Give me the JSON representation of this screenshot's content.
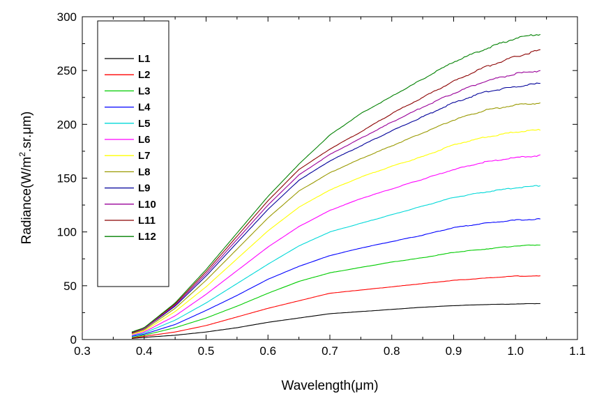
{
  "chart_data": {
    "type": "line",
    "xlabel": "Wavelength(μm)",
    "ylabel_parts": [
      "Radiance(W/m",
      "2",
      ".sr.μm)"
    ],
    "xlim": [
      0.3,
      1.1
    ],
    "ylim": [
      0,
      300
    ],
    "x_ticks": [
      "0.3",
      "0.4",
      "0.5",
      "0.6",
      "0.7",
      "0.8",
      "0.9",
      "1.0",
      "1.1"
    ],
    "y_ticks": [
      "0",
      "50",
      "100",
      "150",
      "200",
      "250",
      "300"
    ],
    "grid": false,
    "legend_position": "top-left",
    "x": [
      0.38,
      0.4,
      0.45,
      0.5,
      0.55,
      0.6,
      0.65,
      0.7,
      0.75,
      0.8,
      0.85,
      0.9,
      0.95,
      1.0,
      1.04
    ],
    "series": [
      {
        "name": "L1",
        "color": "#000000",
        "values": [
          1,
          2,
          4,
          7,
          11,
          16,
          20,
          24,
          26,
          28,
          30,
          31.5,
          32.5,
          33,
          33.5
        ]
      },
      {
        "name": "L2",
        "color": "#ff0000",
        "values": [
          1.5,
          3,
          7,
          13,
          21,
          29,
          36,
          43,
          46,
          49,
          52,
          55,
          57,
          59,
          59
        ]
      },
      {
        "name": "L3",
        "color": "#00cc00",
        "values": [
          2,
          4,
          11,
          20,
          31,
          43,
          54,
          62,
          67,
          72,
          76,
          81,
          84,
          87,
          88
        ]
      },
      {
        "name": "L4",
        "color": "#0000ff",
        "values": [
          3,
          5,
          14,
          27,
          41,
          56,
          68,
          78,
          85,
          91,
          97,
          104,
          108,
          111,
          112
        ]
      },
      {
        "name": "L5",
        "color": "#00d8d8",
        "values": [
          3.5,
          6,
          18,
          34,
          52,
          70,
          87,
          100,
          108,
          116,
          124,
          132,
          137,
          141,
          143
        ]
      },
      {
        "name": "L6",
        "color": "#ff00ff",
        "values": [
          4,
          7,
          22,
          42,
          64,
          86,
          105,
          120,
          131,
          140,
          149,
          158,
          165,
          169,
          171
        ]
      },
      {
        "name": "L7",
        "color": "#ffff00",
        "values": [
          5,
          8,
          26,
          49,
          75,
          101,
          123,
          139,
          151,
          161,
          170,
          181,
          188,
          193,
          195
        ]
      },
      {
        "name": "L8",
        "color": "#999900",
        "values": [
          5.5,
          9,
          29,
          55,
          84,
          113,
          138,
          155,
          168,
          180,
          192,
          204,
          213,
          218,
          220
        ]
      },
      {
        "name": "L9",
        "color": "#000099",
        "values": [
          6,
          10,
          31,
          59,
          90,
          121,
          148,
          166,
          180,
          194,
          207,
          220,
          230,
          235,
          238
        ]
      },
      {
        "name": "L10",
        "color": "#990099",
        "values": [
          6,
          10,
          32,
          61,
          93,
          125,
          153,
          172,
          187,
          202,
          216,
          229,
          240,
          247,
          250
        ]
      },
      {
        "name": "L11",
        "color": "#8b0000",
        "values": [
          6.5,
          11,
          33,
          63,
          96,
          129,
          158,
          177,
          193,
          210,
          225,
          240,
          253,
          263,
          269
        ]
      },
      {
        "name": "L12",
        "color": "#008000",
        "values": [
          7,
          11,
          34,
          65,
          99,
          133,
          163,
          190,
          210,
          226,
          242,
          258,
          270,
          280,
          284
        ]
      }
    ]
  }
}
